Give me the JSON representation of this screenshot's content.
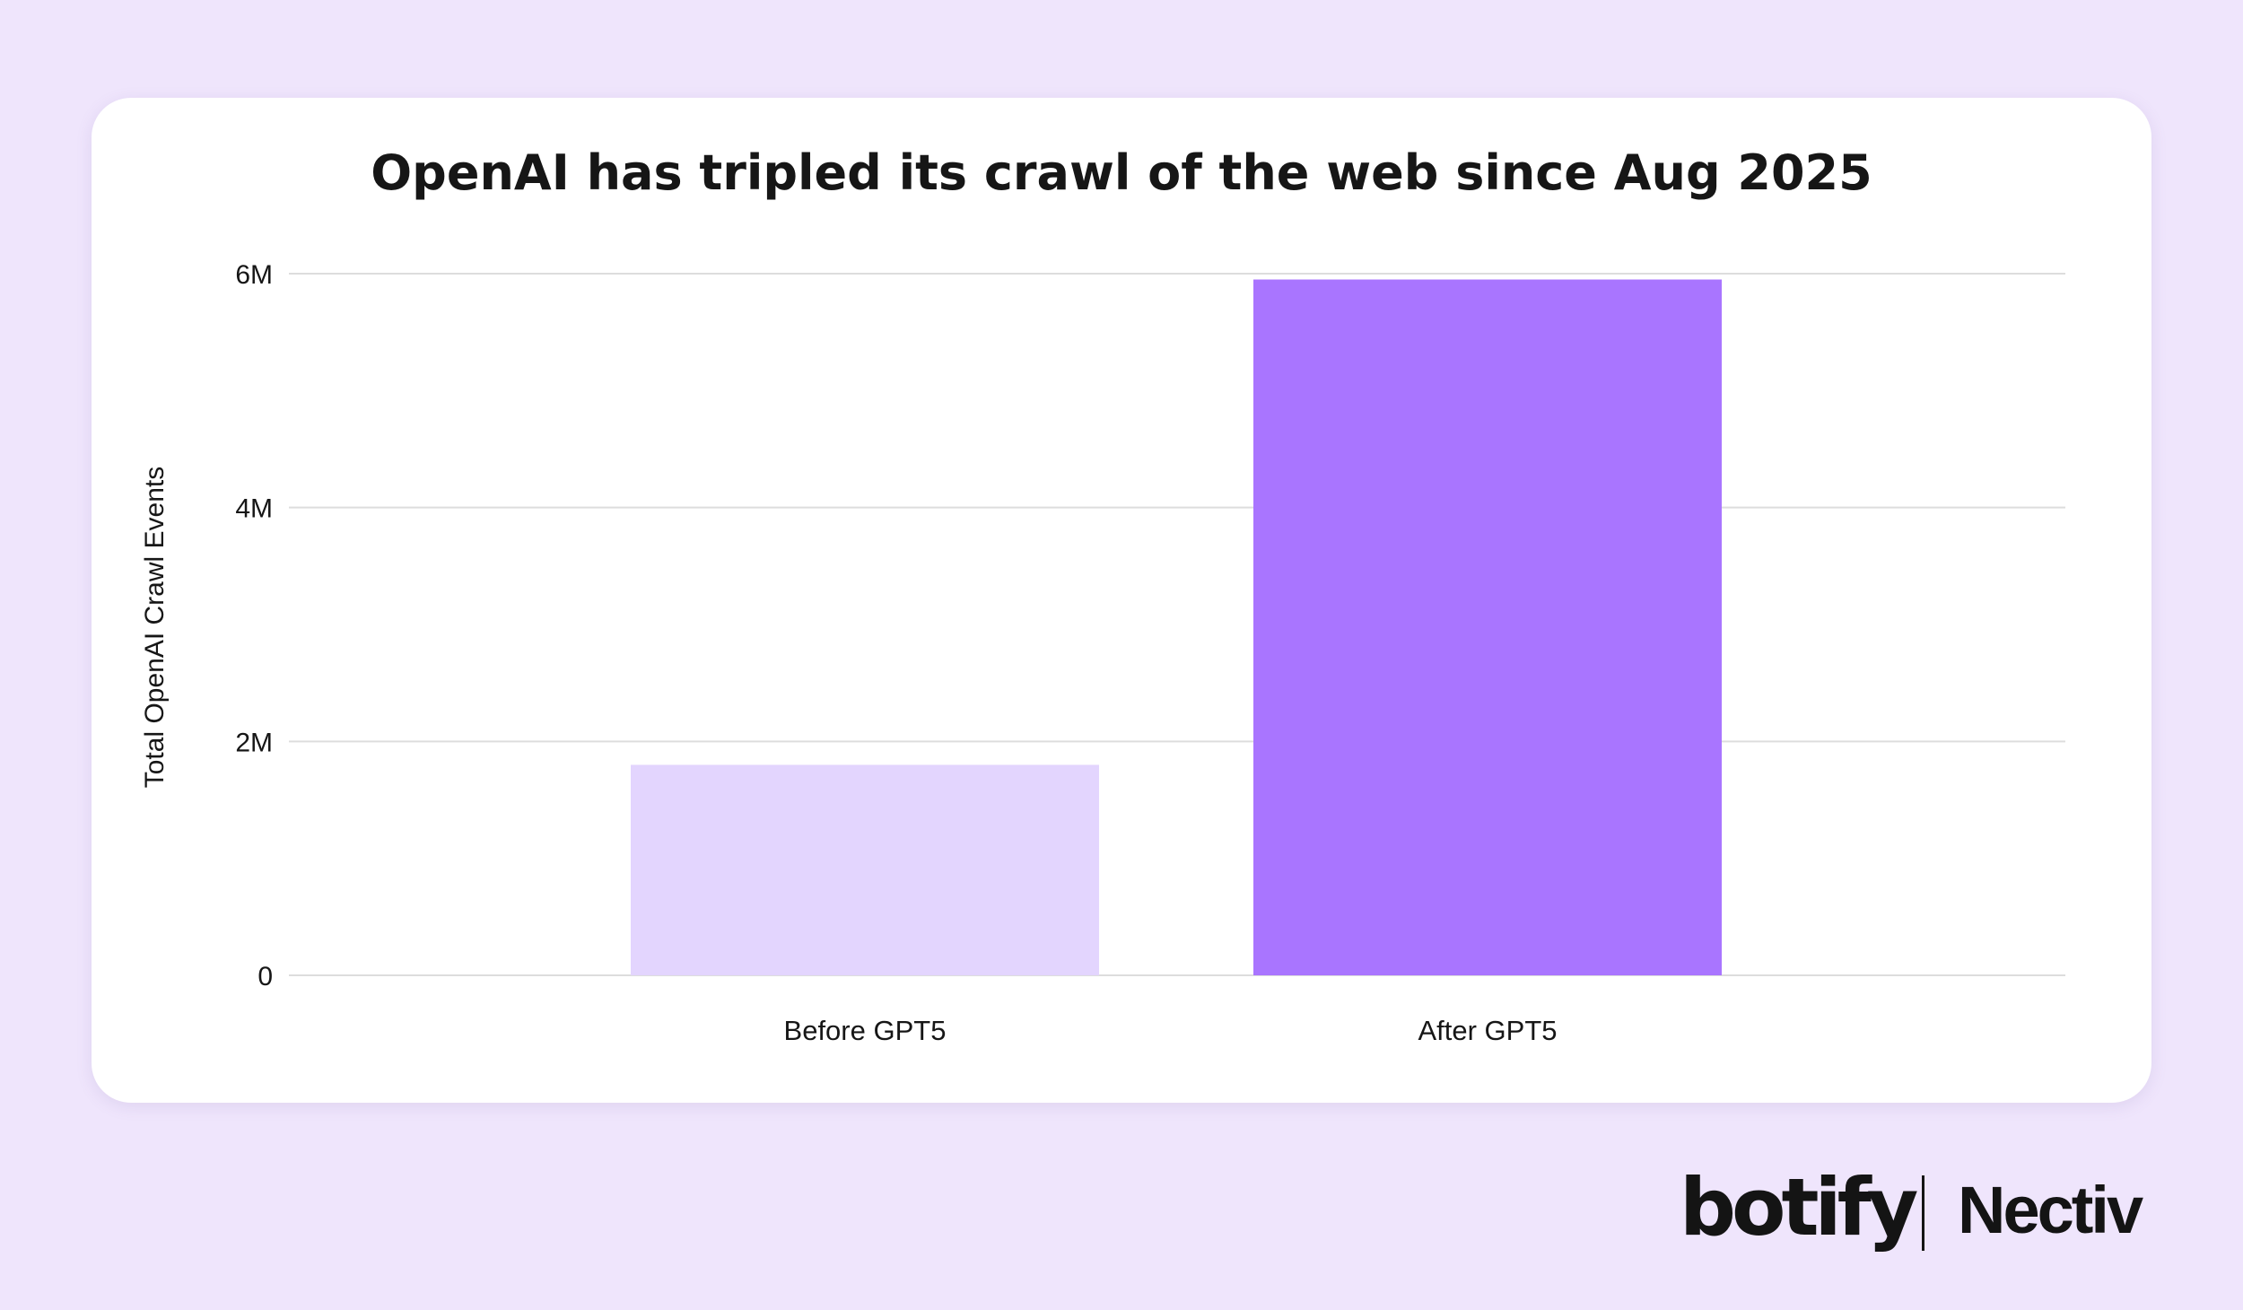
{
  "chart_data": {
    "type": "bar",
    "title": "OpenAI has tripled its crawl of the web since Aug 2025",
    "xlabel": "",
    "ylabel": "Total OpenAI Crawl Events",
    "categories": [
      "Before GPT5",
      "After GPT5"
    ],
    "values": [
      1800000,
      5950000
    ],
    "ylim": [
      0,
      6000000
    ],
    "yticks": [
      {
        "value": 0,
        "label": "0"
      },
      {
        "value": 2000000,
        "label": "2M"
      },
      {
        "value": 4000000,
        "label": "4M"
      },
      {
        "value": 6000000,
        "label": "6M"
      }
    ],
    "bar_colors": [
      "#E3D5FE",
      "#A975FF"
    ],
    "grid": true,
    "legend": "none"
  },
  "colors": {
    "background": "#EFE5FC",
    "card": "#FFFFFF",
    "gridline": "#DDDDDD",
    "text": "#161616"
  },
  "logos": {
    "botify": "botify",
    "nectiv": "Nectiv"
  }
}
